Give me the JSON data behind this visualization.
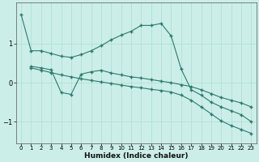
{
  "bg_color": "#cceee8",
  "line_color": "#2a7a6e",
  "grid_color": "#aaddd5",
  "xlabel": "Humidex (Indice chaleur)",
  "xlim": [
    -0.5,
    23.5
  ],
  "ylim": [
    -1.55,
    2.05
  ],
  "yticks": [
    -1,
    0,
    1
  ],
  "xticks": [
    0,
    1,
    2,
    3,
    4,
    5,
    6,
    7,
    8,
    9,
    10,
    11,
    12,
    13,
    14,
    15,
    16,
    17,
    18,
    19,
    20,
    21,
    22,
    23
  ],
  "line1_x": [
    0,
    1,
    2,
    3,
    4,
    5,
    6,
    7,
    8,
    9,
    10,
    11,
    12,
    13,
    14,
    15,
    16,
    17,
    18,
    19,
    20,
    21,
    22,
    23
  ],
  "line1_y": [
    1.75,
    0.82,
    0.82,
    0.75,
    0.68,
    0.65,
    0.72,
    0.82,
    0.95,
    1.1,
    1.22,
    1.32,
    1.47,
    1.47,
    1.52,
    1.2,
    0.35,
    -0.18,
    -0.32,
    -0.5,
    -0.62,
    -0.72,
    -0.82,
    -1.0
  ],
  "line2_x": [
    1,
    2,
    3,
    4,
    5,
    6,
    7,
    8,
    9,
    10,
    11,
    12,
    13,
    14,
    15,
    16,
    17,
    18,
    19,
    20,
    21,
    22,
    23
  ],
  "line2_y": [
    0.42,
    0.38,
    0.33,
    -0.25,
    -0.3,
    0.22,
    0.28,
    0.32,
    0.25,
    0.2,
    0.15,
    0.12,
    0.08,
    0.04,
    0.0,
    -0.05,
    -0.1,
    -0.18,
    -0.28,
    -0.38,
    -0.45,
    -0.52,
    -0.62
  ],
  "line3_x": [
    1,
    2,
    3,
    4,
    5,
    6,
    7,
    8,
    9,
    10,
    11,
    12,
    13,
    14,
    15,
    16,
    17,
    18,
    19,
    20,
    21,
    22,
    23
  ],
  "line3_y": [
    0.38,
    0.32,
    0.26,
    0.2,
    0.15,
    0.1,
    0.06,
    0.02,
    -0.02,
    -0.06,
    -0.1,
    -0.13,
    -0.17,
    -0.2,
    -0.24,
    -0.32,
    -0.45,
    -0.62,
    -0.8,
    -0.98,
    -1.1,
    -1.2,
    -1.3
  ]
}
